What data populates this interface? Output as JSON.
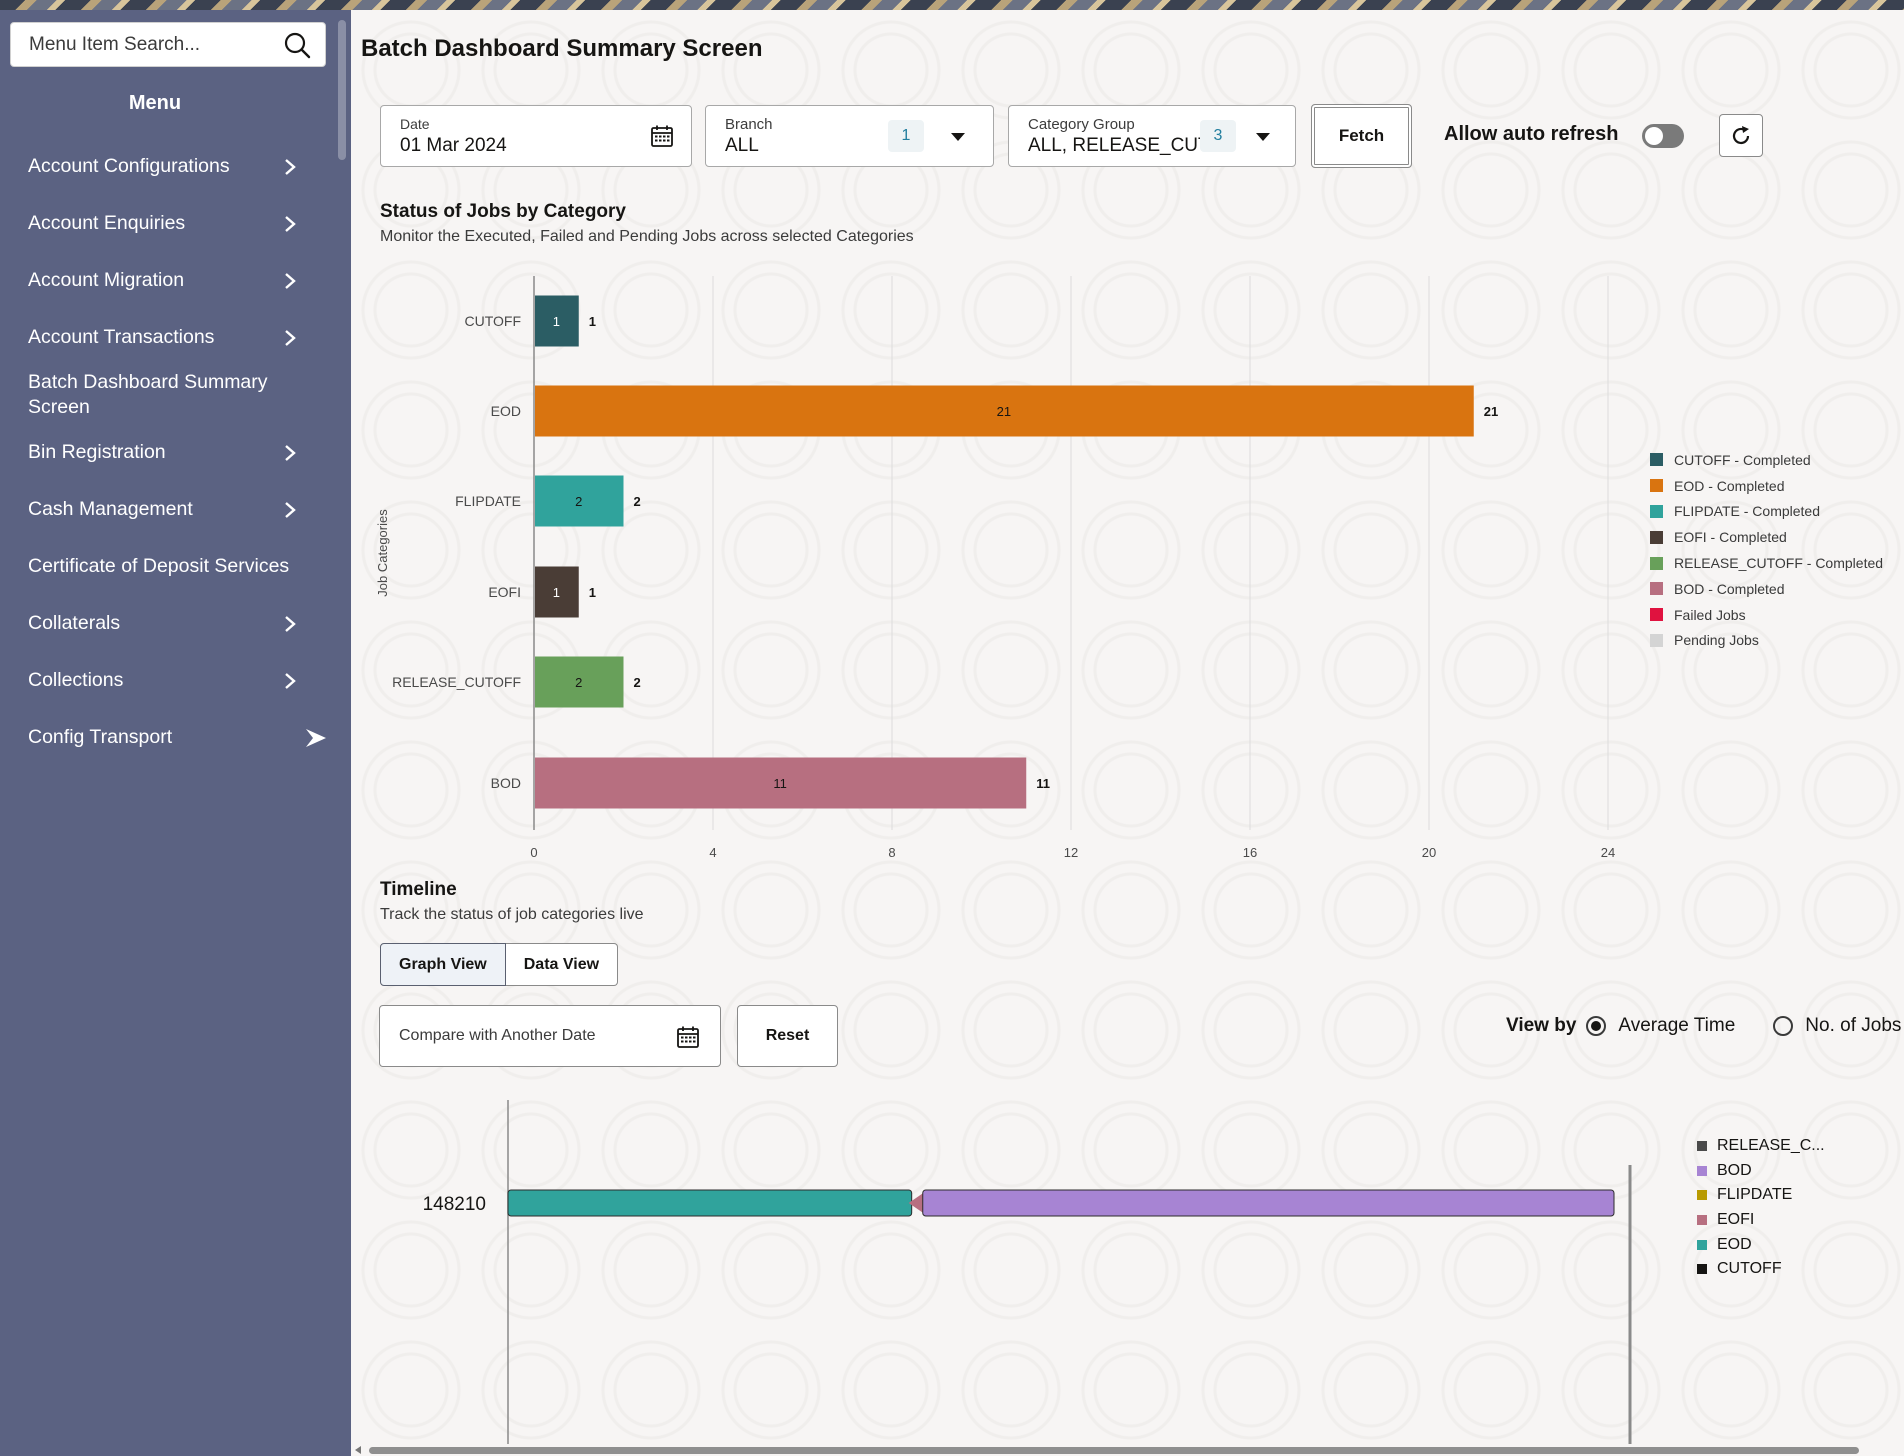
{
  "sidebar": {
    "search_placeholder": "Menu Item Search...",
    "menu_title": "Menu",
    "items": [
      {
        "label": "Account Configurations",
        "has_children": true
      },
      {
        "label": "Account Enquiries",
        "has_children": true
      },
      {
        "label": "Account Migration",
        "has_children": true
      },
      {
        "label": "Account Transactions",
        "has_children": true
      },
      {
        "label": "Batch Dashboard Summary Screen",
        "has_children": false
      },
      {
        "label": "Bin Registration",
        "has_children": true
      },
      {
        "label": "Cash Management",
        "has_children": true
      },
      {
        "label": "Certificate of Deposit Services",
        "has_children": false
      },
      {
        "label": "Collaterals",
        "has_children": true
      },
      {
        "label": "Collections",
        "has_children": true
      },
      {
        "label": "Config Transport",
        "has_children": true
      }
    ]
  },
  "page": {
    "title": "Batch Dashboard Summary Screen"
  },
  "filters": {
    "date": {
      "label": "Date",
      "value": "01 Mar 2024"
    },
    "branch": {
      "label": "Branch",
      "value": "ALL",
      "count": "1"
    },
    "category_group": {
      "label": "Category Group",
      "value": "ALL, RELEASE_CUT",
      "count": "3"
    },
    "fetch_label": "Fetch",
    "auto_refresh_label": "Allow auto refresh",
    "auto_refresh_on": false
  },
  "status_section": {
    "title": "Status of Jobs by Category",
    "subtitle": "Monitor the Executed, Failed and Pending Jobs across selected Categories"
  },
  "chart_data": [
    {
      "type": "bar",
      "orientation": "horizontal",
      "ylabel": "Job Categories",
      "categories": [
        "CUTOFF",
        "EOD",
        "FLIPDATE",
        "EOFI",
        "RELEASE_CUTOFF",
        "BOD"
      ],
      "values": [
        1,
        21,
        2,
        1,
        2,
        11
      ],
      "colors": [
        "#2b5d64",
        "#d97410",
        "#30a39c",
        "#4a3d36",
        "#68a05a",
        "#b76f80"
      ],
      "xlim": [
        0,
        24
      ],
      "xticks": [
        0,
        4,
        8,
        12,
        16,
        20,
        24
      ],
      "grid": true,
      "legend_position": "right",
      "legend": [
        {
          "label": "CUTOFF - Completed",
          "color": "#2b5d64"
        },
        {
          "label": "EOD - Completed",
          "color": "#d97410"
        },
        {
          "label": "FLIPDATE - Completed",
          "color": "#30a39c"
        },
        {
          "label": "EOFI - Completed",
          "color": "#4a3d36"
        },
        {
          "label": "RELEASE_CUTOFF - Completed",
          "color": "#68a05a"
        },
        {
          "label": "BOD - Completed",
          "color": "#b76f80"
        },
        {
          "label": "Failed Jobs",
          "color": "#e0123f"
        },
        {
          "label": "Pending Jobs",
          "color": "#d4d4d4"
        }
      ]
    },
    {
      "type": "bar",
      "orientation": "horizontal-timeline",
      "categories": [
        "148210"
      ],
      "series": [
        {
          "name": "EOD",
          "color": "#30a39c",
          "start": 0,
          "end": 0.365
        },
        {
          "name": "EOFI",
          "color": "#b76f80",
          "start": 0.365,
          "end": 0.375
        },
        {
          "name": "BOD",
          "color": "#a784d3",
          "start": 0.375,
          "end": 1.0
        }
      ],
      "legend_position": "right",
      "legend": [
        {
          "label": "RELEASE_C...",
          "color": "#4a4a4a"
        },
        {
          "label": "BOD",
          "color": "#a784d3"
        },
        {
          "label": "FLIPDATE",
          "color": "#b89a00"
        },
        {
          "label": "EOFI",
          "color": "#b76f80"
        },
        {
          "label": "EOD",
          "color": "#30a39c"
        },
        {
          "label": "CUTOFF",
          "color": "#161513"
        }
      ]
    }
  ],
  "timeline_section": {
    "title": "Timeline",
    "subtitle": "Track the status of job categories live",
    "tabs": [
      "Graph View",
      "Data View"
    ],
    "active_tab": "Graph View",
    "compare_placeholder": "Compare with Another Date",
    "reset_label": "Reset",
    "view_by_label": "View by",
    "view_by_options": [
      "Average Time",
      "No. of Jobs"
    ],
    "view_by_selected": "Average Time"
  }
}
